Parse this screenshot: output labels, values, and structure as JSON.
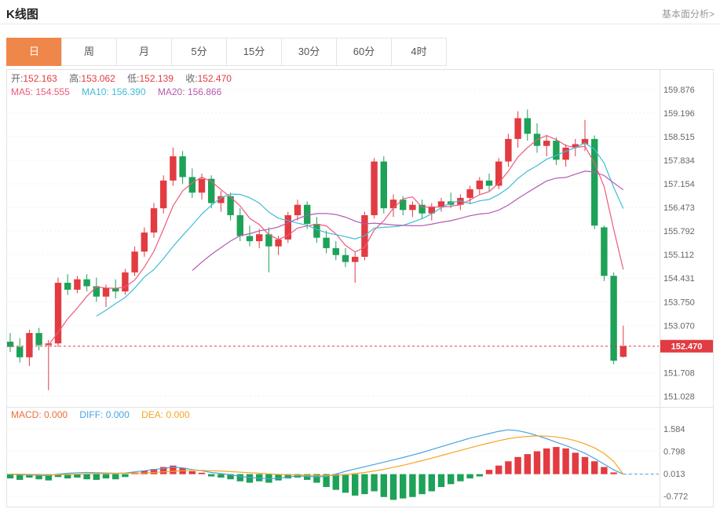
{
  "header": {
    "title": "K线图",
    "link_label": "基本面分析>"
  },
  "tabs": {
    "items": [
      {
        "label": "日",
        "active": true
      },
      {
        "label": "周",
        "active": false
      },
      {
        "label": "月",
        "active": false
      },
      {
        "label": "5分",
        "active": false
      },
      {
        "label": "15分",
        "active": false
      },
      {
        "label": "30分",
        "active": false
      },
      {
        "label": "60分",
        "active": false
      },
      {
        "label": "4时",
        "active": false
      }
    ]
  },
  "info_bar": {
    "open_label": "开:",
    "open": "152.163",
    "high_label": "高:",
    "high": "153.062",
    "low_label": "低:",
    "low": "152.139",
    "close_label": "收:",
    "close": "152.470"
  },
  "ma_bar": {
    "ma5_label": "MA5:",
    "ma5": "154.555",
    "ma10_label": "MA10:",
    "ma10": "156.390",
    "ma20_label": "MA20:",
    "ma20": "156.866"
  },
  "macd_bar": {
    "macd_label": "MACD:",
    "macd": "0.000",
    "diff_label": "DIFF:",
    "diff": "0.000",
    "dea_label": "DEA:",
    "dea": "0.000"
  },
  "price_badge": "152.470",
  "colors": {
    "up": "#e23b41",
    "down": "#1da258",
    "ma5": "#ef5a7a",
    "ma10": "#3fbcd8",
    "ma20": "#b55ab0",
    "diff": "#4aa3df",
    "dea": "#f5a623",
    "macd_text": "#ee6a3d",
    "tab_active": "#f0874a",
    "axis_text": "#666666",
    "grid": "#f0f0f0",
    "border": "#e2e2e2"
  },
  "chart_data": [
    {
      "type": "candlestick",
      "panel": "main",
      "title": "K线图 日K",
      "legend": [
        "MA5",
        "MA10",
        "MA20"
      ],
      "y_ticks": [
        "159.876",
        "159.196",
        "158.515",
        "157.834",
        "157.154",
        "156.473",
        "155.792",
        "155.112",
        "154.431",
        "153.750",
        "153.070",
        "151.708",
        "151.028"
      ],
      "ylim": [
        151.028,
        159.876
      ],
      "last_price": 152.47,
      "ma_periods": [
        5,
        10,
        20
      ],
      "ohlc": [
        [
          152.6,
          152.85,
          152.3,
          152.45
        ],
        [
          152.45,
          152.7,
          152.0,
          152.15
        ],
        [
          152.15,
          152.95,
          151.9,
          152.85
        ],
        [
          152.85,
          153.0,
          152.35,
          152.5
        ],
        [
          152.5,
          152.65,
          151.2,
          152.55
        ],
        [
          152.55,
          154.45,
          152.45,
          154.3
        ],
        [
          154.3,
          154.55,
          153.95,
          154.1
        ],
        [
          154.1,
          154.5,
          154.0,
          154.4
        ],
        [
          154.4,
          154.55,
          154.05,
          154.2
        ],
        [
          154.2,
          154.45,
          153.75,
          153.9
        ],
        [
          153.9,
          154.25,
          153.6,
          154.15
        ],
        [
          154.15,
          154.4,
          153.85,
          154.05
        ],
        [
          154.05,
          154.7,
          153.95,
          154.6
        ],
        [
          154.6,
          155.35,
          154.5,
          155.2
        ],
        [
          155.2,
          155.9,
          155.05,
          155.75
        ],
        [
          155.75,
          156.6,
          155.6,
          156.45
        ],
        [
          156.45,
          157.4,
          156.3,
          157.25
        ],
        [
          157.25,
          158.2,
          157.1,
          157.95
        ],
        [
          157.95,
          158.1,
          157.15,
          157.35
        ],
        [
          157.35,
          157.6,
          156.75,
          156.9
        ],
        [
          156.9,
          157.45,
          156.7,
          157.3
        ],
        [
          157.3,
          157.4,
          156.45,
          156.6
        ],
        [
          156.6,
          156.95,
          156.35,
          156.8
        ],
        [
          156.8,
          156.9,
          156.1,
          156.25
        ],
        [
          156.25,
          156.45,
          155.5,
          155.65
        ],
        [
          155.65,
          155.95,
          155.35,
          155.5
        ],
        [
          155.5,
          155.85,
          155.3,
          155.7
        ],
        [
          155.7,
          155.9,
          154.6,
          155.35
        ],
        [
          155.35,
          155.65,
          155.1,
          155.55
        ],
        [
          155.55,
          156.35,
          155.45,
          156.25
        ],
        [
          156.25,
          156.7,
          156.1,
          156.55
        ],
        [
          156.55,
          156.65,
          155.85,
          156.0
        ],
        [
          156.0,
          156.2,
          155.45,
          155.6
        ],
        [
          155.6,
          155.8,
          155.15,
          155.3
        ],
        [
          155.3,
          155.5,
          154.95,
          155.1
        ],
        [
          155.1,
          155.3,
          154.75,
          154.9
        ],
        [
          154.9,
          155.2,
          154.3,
          155.05
        ],
        [
          155.05,
          156.35,
          154.95,
          156.25
        ],
        [
          156.25,
          157.9,
          156.15,
          157.8
        ],
        [
          157.8,
          157.95,
          156.3,
          156.45
        ],
        [
          156.45,
          156.85,
          156.2,
          156.7
        ],
        [
          156.7,
          156.8,
          156.25,
          156.4
        ],
        [
          156.4,
          156.65,
          156.2,
          156.55
        ],
        [
          156.55,
          156.7,
          156.15,
          156.3
        ],
        [
          156.3,
          156.6,
          156.1,
          156.5
        ],
        [
          156.5,
          156.75,
          156.35,
          156.65
        ],
        [
          156.65,
          156.9,
          156.45,
          156.55
        ],
        [
          156.55,
          156.85,
          156.4,
          156.75
        ],
        [
          156.75,
          157.1,
          156.6,
          157.0
        ],
        [
          157.0,
          157.35,
          156.85,
          157.25
        ],
        [
          157.25,
          157.45,
          156.95,
          157.1
        ],
        [
          157.1,
          157.9,
          157.0,
          157.8
        ],
        [
          157.8,
          158.6,
          157.65,
          158.45
        ],
        [
          158.45,
          159.25,
          158.2,
          159.05
        ],
        [
          159.05,
          159.3,
          158.4,
          158.6
        ],
        [
          158.6,
          158.9,
          158.05,
          158.25
        ],
        [
          158.25,
          158.55,
          157.95,
          158.4
        ],
        [
          158.4,
          158.5,
          157.7,
          157.85
        ],
        [
          157.85,
          158.3,
          157.65,
          158.2
        ],
        [
          158.2,
          158.45,
          157.95,
          158.3
        ],
        [
          158.3,
          159.0,
          158.1,
          158.45
        ],
        [
          158.45,
          158.55,
          155.85,
          155.95
        ],
        [
          155.9,
          155.95,
          154.35,
          154.5
        ],
        [
          154.5,
          154.6,
          151.95,
          152.05
        ],
        [
          152.163,
          153.062,
          152.139,
          152.47
        ]
      ]
    },
    {
      "type": "bar",
      "panel": "macd",
      "title": "MACD(12,26,9)",
      "y_ticks": [
        "1.584",
        "0.798",
        "0.013",
        "-0.772"
      ],
      "ylim": [
        -1.15,
        2.25
      ],
      "histogram": [
        -0.15,
        -0.2,
        -0.12,
        -0.18,
        -0.22,
        -0.1,
        -0.15,
        -0.12,
        -0.18,
        -0.2,
        -0.15,
        -0.18,
        -0.1,
        0.06,
        0.12,
        0.18,
        0.25,
        0.3,
        0.22,
        0.1,
        0.05,
        -0.08,
        -0.12,
        -0.18,
        -0.25,
        -0.3,
        -0.25,
        -0.3,
        -0.22,
        -0.15,
        -0.12,
        -0.2,
        -0.3,
        -0.45,
        -0.55,
        -0.65,
        -0.75,
        -0.7,
        -0.6,
        -0.8,
        -0.9,
        -0.85,
        -0.8,
        -0.7,
        -0.6,
        -0.45,
        -0.35,
        -0.25,
        -0.15,
        -0.08,
        0.15,
        0.3,
        0.45,
        0.6,
        0.7,
        0.8,
        0.9,
        0.95,
        0.9,
        0.75,
        0.6,
        0.45,
        0.25,
        0.06,
        0.0
      ],
      "diff": [
        0.0,
        -0.02,
        -0.03,
        -0.04,
        -0.05,
        0.0,
        0.03,
        0.05,
        0.06,
        0.05,
        0.04,
        0.03,
        0.04,
        0.08,
        0.12,
        0.16,
        0.2,
        0.24,
        0.22,
        0.16,
        0.12,
        0.06,
        0.02,
        -0.02,
        -0.08,
        -0.12,
        -0.14,
        -0.16,
        -0.14,
        -0.1,
        -0.06,
        -0.08,
        -0.1,
        -0.08,
        0.0,
        0.1,
        0.18,
        0.26,
        0.34,
        0.42,
        0.5,
        0.58,
        0.67,
        0.76,
        0.86,
        0.96,
        1.06,
        1.16,
        1.26,
        1.34,
        1.42,
        1.5,
        1.55,
        1.52,
        1.45,
        1.35,
        1.24,
        1.12,
        1.0,
        0.87,
        0.73,
        0.55,
        0.35,
        0.15,
        0.0
      ],
      "dea": [
        0.0,
        0.0,
        -0.01,
        -0.01,
        -0.02,
        -0.02,
        -0.01,
        0.0,
        0.01,
        0.02,
        0.02,
        0.02,
        0.03,
        0.03,
        0.04,
        0.06,
        0.08,
        0.1,
        0.12,
        0.13,
        0.13,
        0.12,
        0.11,
        0.09,
        0.07,
        0.05,
        0.03,
        0.01,
        -0.01,
        -0.02,
        -0.03,
        -0.04,
        -0.05,
        -0.05,
        -0.04,
        -0.02,
        0.02,
        0.06,
        0.11,
        0.17,
        0.24,
        0.31,
        0.39,
        0.47,
        0.56,
        0.65,
        0.74,
        0.83,
        0.92,
        1.01,
        1.09,
        1.17,
        1.24,
        1.29,
        1.32,
        1.34,
        1.33,
        1.3,
        1.25,
        1.17,
        1.06,
        0.92,
        0.72,
        0.45,
        0.0
      ]
    }
  ]
}
